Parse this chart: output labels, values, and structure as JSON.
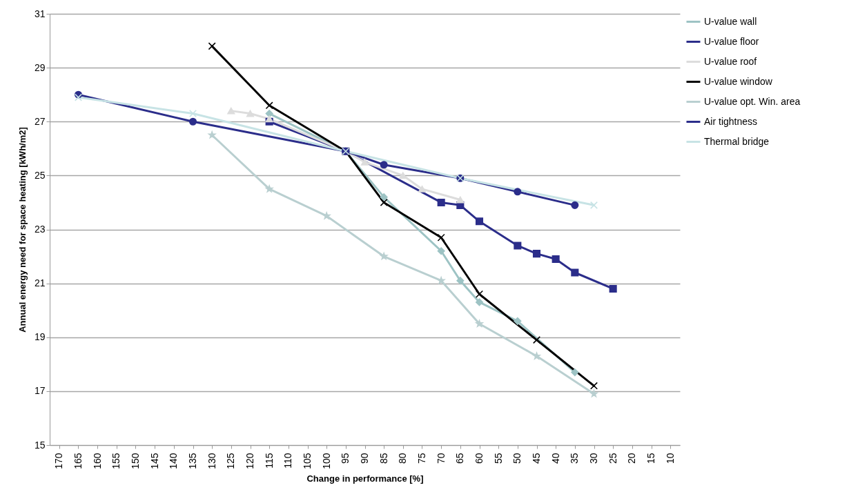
{
  "chart_data": {
    "type": "line",
    "xlabel": "Change in performance [%]",
    "ylabel": "Annual energy need for space heating [kWh/m2]",
    "xlim": [
      172.5,
      7.5
    ],
    "xticks": [
      170,
      165,
      160,
      155,
      150,
      145,
      140,
      135,
      130,
      125,
      120,
      115,
      110,
      105,
      100,
      95,
      90,
      85,
      80,
      75,
      70,
      65,
      60,
      55,
      50,
      45,
      40,
      35,
      30,
      25,
      20,
      15,
      10
    ],
    "ylim": [
      15,
      31
    ],
    "yticks": [
      15,
      17,
      19,
      21,
      23,
      25,
      27,
      29,
      31
    ],
    "grid": "y",
    "legend": "right",
    "line_style": "solid",
    "series": [
      {
        "name": "U-value wall",
        "color": "#9dc3c4",
        "marker": "diamond",
        "x": [
          115,
          95,
          85,
          70,
          65,
          60,
          50,
          35
        ],
        "values": [
          27.3,
          25.9,
          24.2,
          22.2,
          21.1,
          20.3,
          19.6,
          17.7
        ]
      },
      {
        "name": "U-value floor",
        "color": "#2b2d8a",
        "marker": "square",
        "x": [
          115,
          95,
          70,
          65,
          60,
          50,
          45,
          40,
          35,
          25
        ],
        "values": [
          27.0,
          25.9,
          24.0,
          23.9,
          23.3,
          22.4,
          22.1,
          21.9,
          21.4,
          20.8
        ]
      },
      {
        "name": "U-value roof",
        "color": "#dcdcdc",
        "marker": "triangle",
        "x": [
          125,
          120,
          115,
          95,
          90,
          80,
          75,
          65
        ],
        "values": [
          27.4,
          27.3,
          27.1,
          25.9,
          25.5,
          25.0,
          24.5,
          24.1
        ]
      },
      {
        "name": "U-value window",
        "color": "#000000",
        "marker": "cross",
        "x": [
          130,
          115,
          95,
          85,
          70,
          60,
          45,
          30
        ],
        "values": [
          29.8,
          27.6,
          25.9,
          24.0,
          22.7,
          20.6,
          18.9,
          17.2
        ]
      },
      {
        "name": "U-value opt. Win. area",
        "color": "#b9cfd0",
        "marker": "star",
        "x": [
          130,
          115,
          100,
          85,
          70,
          60,
          45,
          30
        ],
        "values": [
          26.5,
          24.5,
          23.5,
          22.0,
          21.1,
          19.5,
          18.3,
          16.9
        ]
      },
      {
        "name": "Air tightness",
        "color": "#2b2d8a",
        "marker": "circle",
        "x": [
          165,
          135,
          95,
          85,
          65,
          50,
          35
        ],
        "values": [
          28.0,
          27.0,
          25.9,
          25.4,
          24.9,
          24.4,
          23.9
        ]
      },
      {
        "name": "Thermal bridge",
        "color": "#c7e3e5",
        "marker": "cross",
        "x": [
          165,
          135,
          95,
          65,
          30
        ],
        "values": [
          27.9,
          27.3,
          25.9,
          24.9,
          23.9
        ]
      }
    ]
  }
}
